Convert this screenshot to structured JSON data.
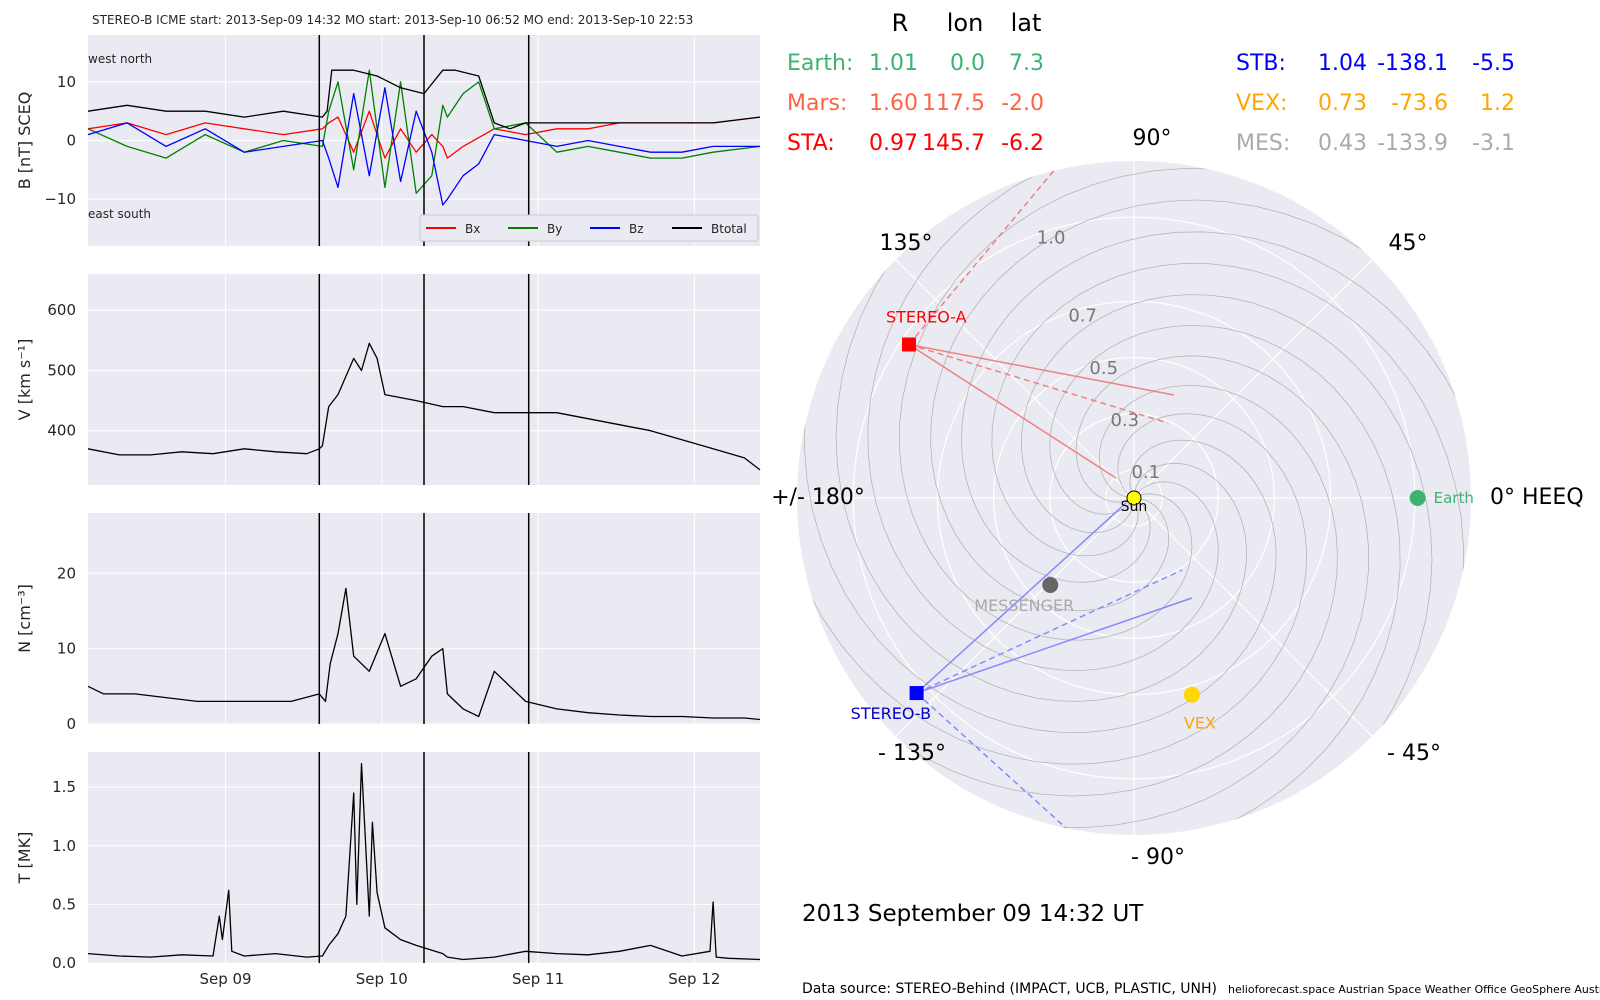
{
  "chart_data": [
    {
      "type": "line",
      "name": "magnetic-field",
      "title": "STEREO-B    ICME start: 2013-Sep-09 14:32   MO start: 2013-Sep-10 06:52   MO end: 2013-Sep-10 22:53",
      "ylabel": "B [nT] SCEQ",
      "ylim": [
        -18,
        18
      ],
      "yticks": [
        "10",
        "0",
        "−10"
      ],
      "ytick_values": [
        10,
        0,
        -10
      ],
      "corner_labels": {
        "top": "west    north",
        "bottom": "east    south"
      },
      "legend": [
        {
          "label": "Bx",
          "color": "#ff0000"
        },
        {
          "label": "By",
          "color": "#008000"
        },
        {
          "label": "Bz",
          "color": "#0000ff"
        },
        {
          "label": "Btotal",
          "color": "#000000"
        }
      ],
      "series": [
        {
          "name": "Bx",
          "color": "#ff0000",
          "x": [
            0.0,
            0.25,
            0.5,
            0.75,
            1.0,
            1.25,
            1.5,
            1.54,
            1.6,
            1.7,
            1.8,
            1.9,
            2.0,
            2.1,
            2.2,
            2.27,
            2.3,
            2.4,
            2.6,
            2.8,
            3.0,
            3.2,
            3.4,
            3.6,
            3.8,
            4.0,
            4.3
          ],
          "y": [
            2,
            3,
            1,
            3,
            2,
            1,
            2,
            3,
            4,
            -2,
            5,
            -3,
            2,
            -2,
            1,
            -1,
            -3,
            -1,
            2,
            1,
            2,
            2,
            3,
            3,
            3,
            3,
            4
          ]
        },
        {
          "name": "By",
          "color": "#008000",
          "x": [
            0.0,
            0.25,
            0.5,
            0.75,
            1.0,
            1.25,
            1.5,
            1.54,
            1.6,
            1.7,
            1.8,
            1.9,
            2.0,
            2.1,
            2.2,
            2.27,
            2.3,
            2.4,
            2.5,
            2.6,
            2.8,
            3.0,
            3.2,
            3.4,
            3.6,
            3.8,
            4.0,
            4.3
          ],
          "y": [
            2,
            -1,
            -3,
            1,
            -2,
            0,
            -1,
            5,
            10,
            -5,
            12,
            -8,
            10,
            -9,
            -6,
            6,
            4,
            8,
            10,
            2,
            3,
            -2,
            -1,
            -2,
            -3,
            -3,
            -2,
            -1
          ]
        },
        {
          "name": "Bz",
          "color": "#0000ff",
          "x": [
            0.0,
            0.25,
            0.5,
            0.75,
            1.0,
            1.25,
            1.5,
            1.54,
            1.6,
            1.7,
            1.8,
            1.9,
            2.0,
            2.1,
            2.2,
            2.27,
            2.3,
            2.4,
            2.5,
            2.6,
            2.8,
            3.0,
            3.2,
            3.4,
            3.6,
            3.8,
            4.0,
            4.3
          ],
          "y": [
            1,
            3,
            -1,
            2,
            -2,
            -1,
            0,
            -3,
            -8,
            8,
            -6,
            9,
            -7,
            5,
            -2,
            -11,
            -10,
            -6,
            -4,
            1,
            0,
            -1,
            0,
            -1,
            -2,
            -2,
            -1,
            -1
          ]
        },
        {
          "name": "Btotal",
          "color": "#000000",
          "x": [
            0.0,
            0.25,
            0.5,
            0.75,
            1.0,
            1.25,
            1.5,
            1.53,
            1.56,
            1.7,
            1.85,
            2.0,
            2.15,
            2.27,
            2.35,
            2.5,
            2.6,
            2.7,
            2.8,
            3.0,
            3.2,
            3.4,
            3.6,
            3.8,
            4.0,
            4.3
          ],
          "y": [
            5,
            6,
            5,
            5,
            4,
            5,
            4,
            5,
            12,
            12,
            11,
            9,
            8,
            12,
            12,
            11,
            3,
            2,
            3,
            3,
            3,
            3,
            3,
            3,
            3,
            4
          ]
        }
      ]
    },
    {
      "type": "line",
      "name": "speed",
      "ylabel": "V [km s⁻¹]",
      "ylim": [
        310,
        660
      ],
      "yticks": [
        "600",
        "500",
        "400"
      ],
      "ytick_values": [
        600,
        500,
        400
      ],
      "series": [
        {
          "name": "V",
          "color": "#000000",
          "x": [
            0.0,
            0.2,
            0.4,
            0.6,
            0.8,
            1.0,
            1.2,
            1.4,
            1.48,
            1.5,
            1.54,
            1.6,
            1.7,
            1.75,
            1.8,
            1.85,
            1.9,
            2.0,
            2.1,
            2.27,
            2.4,
            2.6,
            2.8,
            3.0,
            3.2,
            3.4,
            3.6,
            3.8,
            4.0,
            4.2,
            4.3
          ],
          "y": [
            370,
            360,
            360,
            365,
            362,
            370,
            365,
            362,
            370,
            375,
            440,
            460,
            520,
            500,
            545,
            520,
            460,
            455,
            450,
            440,
            440,
            430,
            430,
            430,
            420,
            410,
            400,
            385,
            370,
            355,
            335
          ]
        }
      ]
    },
    {
      "type": "line",
      "name": "density",
      "ylabel": "N [cm⁻³]",
      "ylim": [
        0,
        28
      ],
      "yticks": [
        "20",
        "10",
        "0"
      ],
      "ytick_values": [
        20,
        10,
        0
      ],
      "series": [
        {
          "name": "N",
          "color": "#000000",
          "x": [
            0.0,
            0.1,
            0.3,
            0.5,
            0.7,
            0.9,
            1.1,
            1.3,
            1.48,
            1.52,
            1.55,
            1.6,
            1.65,
            1.7,
            1.8,
            1.9,
            2.0,
            2.1,
            2.2,
            2.27,
            2.3,
            2.4,
            2.5,
            2.6,
            2.8,
            3.0,
            3.2,
            3.4,
            3.6,
            3.8,
            4.0,
            4.2,
            4.3
          ],
          "y": [
            5,
            4,
            4,
            3.5,
            3,
            3,
            3,
            3,
            4,
            3,
            8,
            12,
            18,
            9,
            7,
            12,
            5,
            6,
            9,
            10,
            4,
            2,
            1,
            7,
            3,
            2,
            1.5,
            1.2,
            1,
            1,
            0.8,
            0.8,
            0.6
          ]
        }
      ]
    },
    {
      "type": "line",
      "name": "temperature",
      "ylabel": "T [MK]",
      "ylim": [
        0,
        1.8
      ],
      "yticks": [
        "1.5",
        "1.0",
        "0.5",
        "0.0"
      ],
      "ytick_values": [
        1.5,
        1.0,
        0.5,
        0.0
      ],
      "xlim": [
        0,
        4.3
      ],
      "xticks": [
        "Sep 09",
        "Sep 10",
        "Sep 11",
        "Sep 12"
      ],
      "xtick_values": [
        0.88,
        1.88,
        2.88,
        3.88
      ],
      "series": [
        {
          "name": "T",
          "color": "#000000",
          "x": [
            0.0,
            0.2,
            0.4,
            0.6,
            0.8,
            0.84,
            0.86,
            0.9,
            0.92,
            1.0,
            1.2,
            1.4,
            1.5,
            1.54,
            1.6,
            1.65,
            1.7,
            1.72,
            1.75,
            1.8,
            1.82,
            1.85,
            1.9,
            1.95,
            2.0,
            2.1,
            2.27,
            2.3,
            2.4,
            2.6,
            2.8,
            3.0,
            3.2,
            3.4,
            3.6,
            3.8,
            3.98,
            4.0,
            4.02,
            4.1,
            4.3
          ],
          "y": [
            0.08,
            0.06,
            0.05,
            0.07,
            0.06,
            0.4,
            0.2,
            0.62,
            0.1,
            0.06,
            0.08,
            0.05,
            0.06,
            0.15,
            0.25,
            0.4,
            1.45,
            0.5,
            1.7,
            0.4,
            1.2,
            0.6,
            0.3,
            0.25,
            0.2,
            0.15,
            0.08,
            0.05,
            0.03,
            0.05,
            0.1,
            0.08,
            0.07,
            0.1,
            0.15,
            0.06,
            0.1,
            0.52,
            0.05,
            0.04,
            0.03
          ]
        }
      ]
    },
    {
      "type": "polar-scatter",
      "name": "spacecraft-positions",
      "r_tick_labels": [
        "0.1",
        "0.3",
        "0.5",
        "0.7",
        "1.0"
      ],
      "r_tick_values": [
        0.1,
        0.3,
        0.5,
        0.7,
        1.0
      ],
      "angle_labels": [
        "0° HEEQ",
        "45°",
        "90°",
        "135°",
        "+/- 180°",
        "- 135°",
        "- 90°",
        "- 45°"
      ],
      "angle_values": [
        0,
        45,
        90,
        135,
        180,
        -135,
        -90,
        -45
      ],
      "points": [
        {
          "name": "Sun",
          "r": 0.0,
          "lon": 0.0,
          "color": "#ffff00",
          "marker": "circle"
        },
        {
          "name": "Earth",
          "r": 1.01,
          "lon": 0.0,
          "color": "#3cb371",
          "marker": "circle"
        },
        {
          "name": "STEREO-A",
          "r": 0.97,
          "lon": 145.7,
          "color": "#ff0000",
          "marker": "square"
        },
        {
          "name": "STEREO-B",
          "r": 1.04,
          "lon": -138.1,
          "color": "#0000ff",
          "marker": "square"
        },
        {
          "name": "MESSENGER",
          "r": 0.43,
          "lon": -133.9,
          "color": "#666666",
          "marker": "circle"
        },
        {
          "name": "VEX",
          "r": 0.73,
          "lon": -73.6,
          "color": "#ffd700",
          "marker": "circle"
        }
      ],
      "point_labels": {
        "sun": "Sun",
        "earth": "Earth",
        "sta": "STEREO-A",
        "stb": "STEREO-B",
        "mes": "MESSENGER",
        "vex": "VEX"
      }
    }
  ],
  "position_table": {
    "headers": [
      "R",
      "lon",
      "lat"
    ],
    "rows": [
      {
        "label": "Earth:",
        "r": "1.01",
        "lon": "0.0",
        "lat": "7.3",
        "color": "#3cb371"
      },
      {
        "label": "Mars:",
        "r": "1.60",
        "lon": "117.5",
        "lat": "-2.0",
        "color": "#ff6347"
      },
      {
        "label": "STA:",
        "r": "0.97",
        "lon": "145.7",
        "lat": "-6.2",
        "color": "#ff0000"
      },
      {
        "label": "STB:",
        "r": "1.04",
        "lon": "-138.1",
        "lat": "-5.5",
        "color": "#0000ff"
      },
      {
        "label": "VEX:",
        "r": "0.73",
        "lon": "-73.6",
        "lat": "1.2",
        "color": "#ffa500"
      },
      {
        "label": "MES:",
        "r": "0.43",
        "lon": "-133.9",
        "lat": "-3.1",
        "color": "#aaaaaa"
      }
    ]
  },
  "timestamp": "2013 September 09  14:32 UT",
  "footer": {
    "source": "Data source: STEREO-Behind (IMPACT, UCB, PLASTIC, UNH)",
    "credits": "helioforecast.space   Austrian Space Weather Office   GeoSphere Austria"
  },
  "event_lines": [
    1.48,
    2.15,
    2.82
  ]
}
